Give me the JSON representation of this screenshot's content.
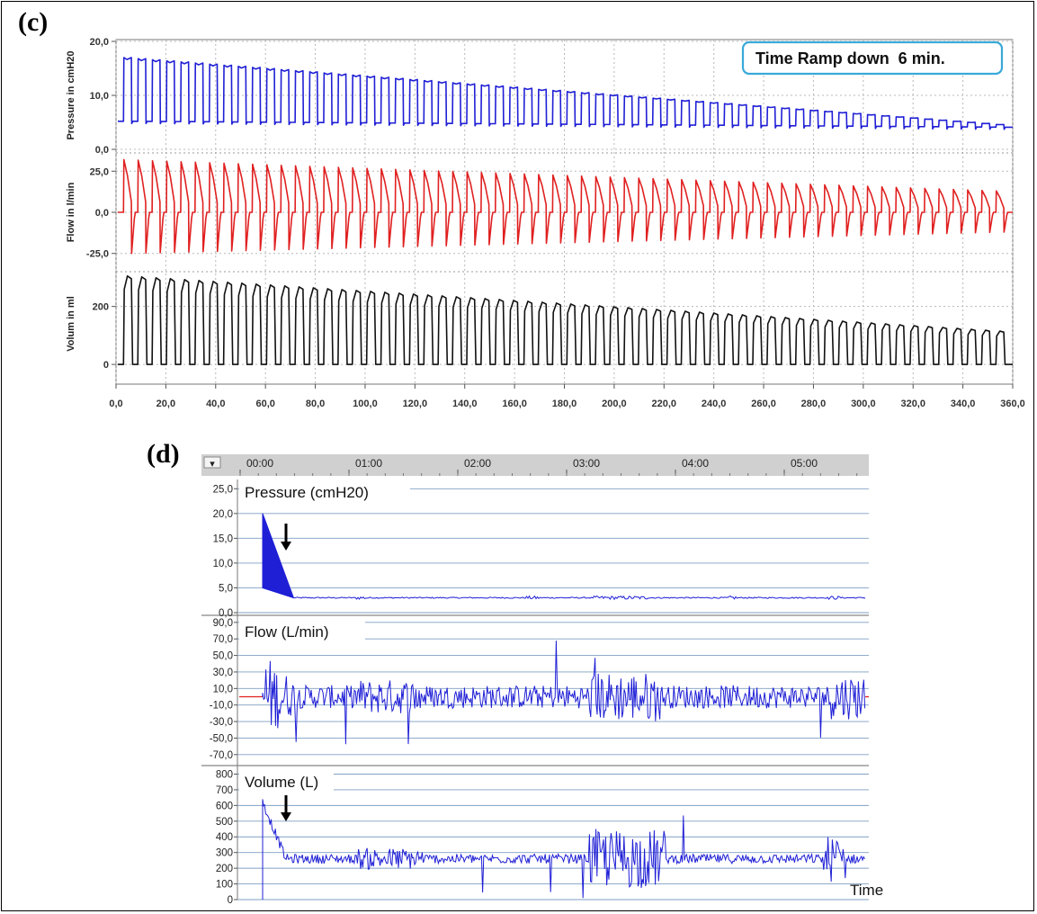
{
  "labels": {
    "panel_c": "(c)",
    "panel_d": "(d)"
  },
  "chart_data": [
    {
      "type": "line",
      "panel": "(c)",
      "annotation": "Time Ramp down  6 min.",
      "xlim": [
        0,
        360
      ],
      "x_ticks": [
        "0,0",
        "20,0",
        "40,0",
        "60,0",
        "80,0",
        "100,0",
        "120,0",
        "140,0",
        "160,0",
        "180,0",
        "200,0",
        "220,0",
        "240,0",
        "260,0",
        "280,0",
        "300,0",
        "320,0",
        "340,0",
        "360,0"
      ],
      "grid": true,
      "breath_count": 62,
      "series": [
        {
          "name": "Pressure in cmH20",
          "color": "#1f1fd6",
          "ylim": [
            0,
            20
          ],
          "y_ticks": [
            "20,0",
            "10,0",
            "0,0"
          ],
          "baseline": [
            5.2,
            4.1
          ],
          "peak": [
            17.0,
            4.6
          ]
        },
        {
          "name": "Flow in l/min",
          "color": "#e02020",
          "ylim": [
            -35,
            35
          ],
          "y_ticks": [
            "25,0",
            "0,0",
            "-25,0"
          ],
          "baseline": [
            0,
            0
          ],
          "peak": [
            32,
            13
          ],
          "trough": [
            -25,
            -12
          ]
        },
        {
          "name": "Volum in ml",
          "color": "#111111",
          "ylim": [
            -40,
            320
          ],
          "y_ticks": [
            "200",
            "0"
          ],
          "baseline": [
            0,
            0
          ],
          "peak": [
            305,
            115
          ]
        }
      ]
    },
    {
      "type": "line",
      "panel": "(d)",
      "x_ticks": [
        "00:00",
        "01:00",
        "02:00",
        "03:00",
        "04:00",
        "05:00"
      ],
      "x_label": "Time",
      "dropdown_glyph": "▾",
      "grid": true,
      "series": [
        {
          "name": "Pressure (cmH20)",
          "color": "#1f1fd6",
          "ylim": [
            0,
            26.5
          ],
          "y_ticks": [
            "25,0",
            "20,0",
            "15,0",
            "10,0",
            "5,0",
            "0,0"
          ],
          "ramp_from": 20,
          "ramp_to": 3,
          "steady": 3
        },
        {
          "name": "Flow (L/min)",
          "color": "#1f1fd6",
          "ylim": [
            -80,
            92
          ],
          "y_ticks": [
            "90,0",
            "70,0",
            "50,0",
            "30,0",
            "10,0",
            "-10,0",
            "-30,0",
            "-50,0",
            "-70,0"
          ],
          "steady": 0
        },
        {
          "name": "Volume (L)",
          "color": "#1f1fd6",
          "ylim": [
            0,
            820
          ],
          "y_ticks": [
            "800",
            "700",
            "600",
            "500",
            "400",
            "300",
            "200",
            "100",
            "0"
          ],
          "steady": 260
        }
      ]
    }
  ]
}
